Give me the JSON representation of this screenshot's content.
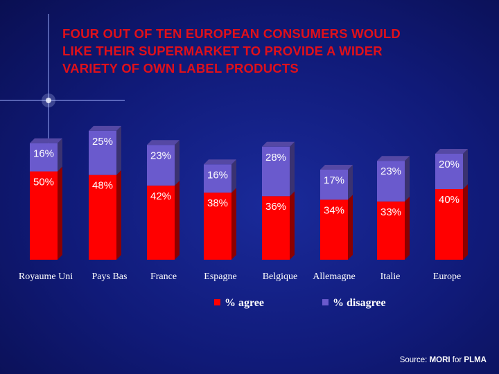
{
  "slide": {
    "title_lines": [
      "FOUR OUT OF TEN EUROPEAN CONSUMERS WOULD",
      "LIKE THEIR SUPERMARKET TO PROVIDE A WIDER",
      "VARIETY OF OWN LABEL PRODUCTS"
    ],
    "source_prefix": "Source: ",
    "source_org": "MORI",
    "source_mid": " for ",
    "source_client": "PLMA"
  },
  "colors": {
    "agree": "#ff0000",
    "disagree": "#6a5acd",
    "label_text": "#ffffff",
    "title": "#e0101a"
  },
  "chart_data": {
    "type": "bar",
    "stacked": true,
    "categories": [
      "Royaume Uni",
      "Pays Bas",
      "France",
      "Espagne",
      "Belgique",
      "Allemagne",
      "Italie",
      "Europe"
    ],
    "series": [
      {
        "name": "% agree",
        "values": [
          50,
          48,
          42,
          38,
          36,
          34,
          33,
          40
        ],
        "labels": [
          "50%",
          "48%",
          "42%",
          "38%",
          "36%",
          "34%",
          "33%",
          "40%"
        ]
      },
      {
        "name": "% disagree",
        "values": [
          16,
          25,
          23,
          16,
          28,
          17,
          23,
          20
        ],
        "labels": [
          "16%",
          "25%",
          "23%",
          "16%",
          "28%",
          "17%",
          "23%",
          "20%"
        ]
      }
    ],
    "legend_position": "bottom",
    "grid": false
  }
}
